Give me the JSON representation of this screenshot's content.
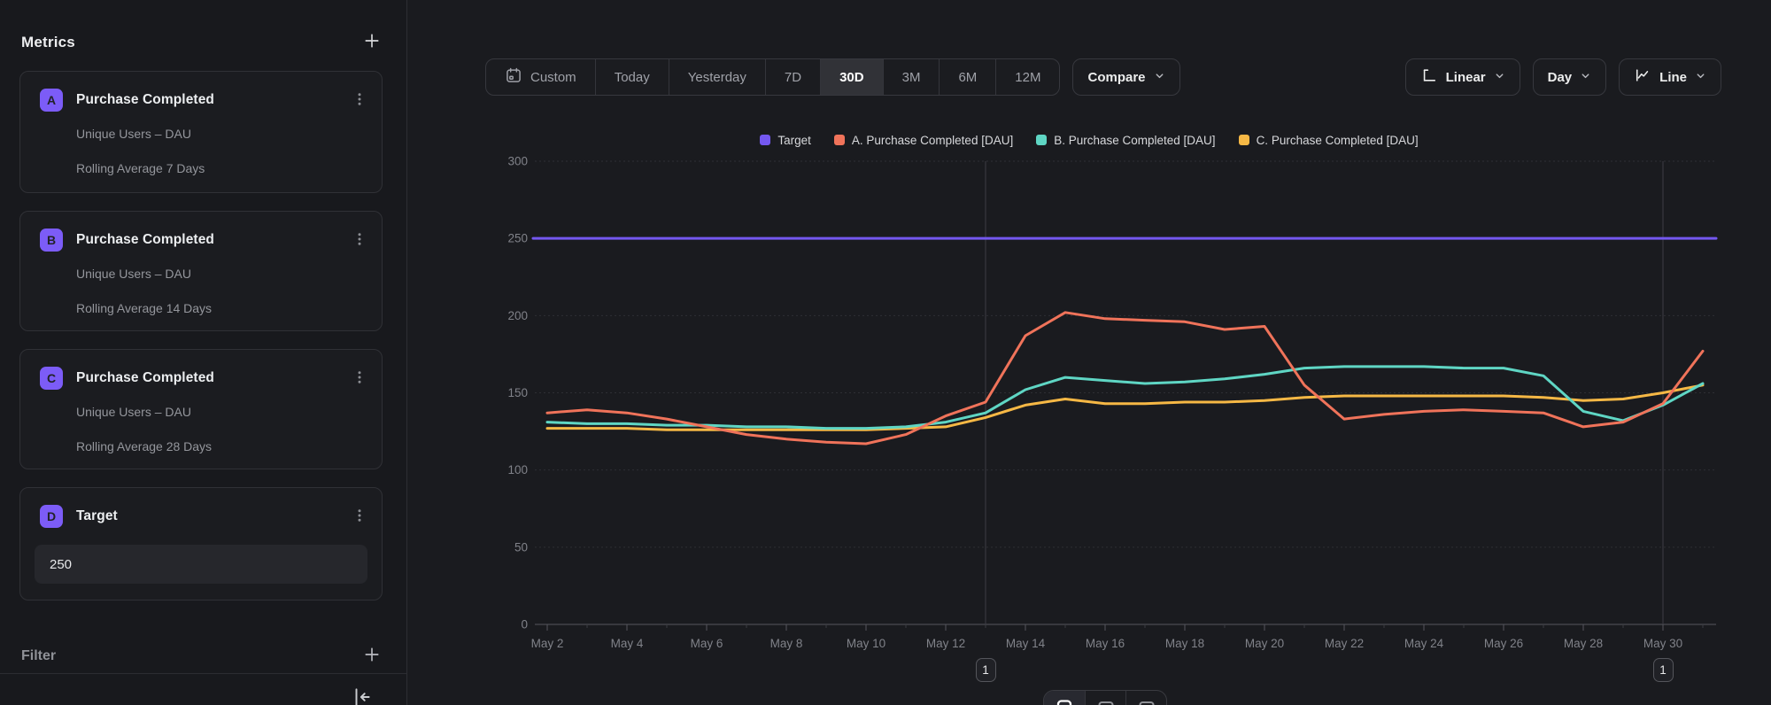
{
  "sidebar": {
    "title": "Metrics",
    "metrics": [
      {
        "badge": "A",
        "title": "Purchase Completed",
        "line1": "Unique Users – DAU",
        "line2": "Rolling Average 7 Days"
      },
      {
        "badge": "B",
        "title": "Purchase Completed",
        "line1": "Unique Users – DAU",
        "line2": "Rolling Average 14 Days"
      },
      {
        "badge": "C",
        "title": "Purchase Completed",
        "line1": "Unique Users – DAU",
        "line2": "Rolling Average 28 Days"
      },
      {
        "badge": "D",
        "title": "Target",
        "value": "250"
      }
    ],
    "filter_label": "Filter"
  },
  "toolbar": {
    "ranges": [
      "Custom",
      "Today",
      "Yesterday",
      "7D",
      "30D",
      "3M",
      "6M",
      "12M"
    ],
    "selected_range": "30D",
    "compare_label": "Compare",
    "scale_label": "Linear",
    "interval_label": "Day",
    "chart_type_label": "Line"
  },
  "legend": [
    {
      "label": "Target",
      "color": "#7458f0"
    },
    {
      "label": "A. Purchase Completed [DAU]",
      "color": "#f0735a"
    },
    {
      "label": "B. Purchase Completed [DAU]",
      "color": "#5fd6c4"
    },
    {
      "label": "C. Purchase Completed [DAU]",
      "color": "#f6b845"
    }
  ],
  "chart_data": {
    "type": "line",
    "x": [
      "May 2",
      "May 3",
      "May 4",
      "May 5",
      "May 6",
      "May 7",
      "May 8",
      "May 9",
      "May 10",
      "May 11",
      "May 12",
      "May 13",
      "May 14",
      "May 15",
      "May 16",
      "May 17",
      "May 18",
      "May 19",
      "May 20",
      "May 21",
      "May 22",
      "May 23",
      "May 24",
      "May 25",
      "May 26",
      "May 27",
      "May 28",
      "May 29",
      "May 30",
      "May 31"
    ],
    "xtick_every": 2,
    "ylim": [
      0,
      300
    ],
    "yticks": [
      0,
      50,
      100,
      150,
      200,
      250,
      300
    ],
    "grid": true,
    "legend_position": "top-center",
    "series": [
      {
        "name": "Target",
        "color": "#7458f0",
        "constant": 250
      },
      {
        "name": "A. Purchase Completed [DAU]",
        "color": "#f0735a",
        "values": [
          137,
          139,
          137,
          133,
          128,
          123,
          120,
          118,
          117,
          123,
          135,
          144,
          187,
          202,
          198,
          197,
          196,
          191,
          193,
          155,
          133,
          136,
          138,
          139,
          138,
          137,
          128,
          131,
          143,
          177
        ]
      },
      {
        "name": "B. Purchase Completed [DAU]",
        "color": "#5fd6c4",
        "values": [
          131,
          130,
          130,
          129,
          129,
          128,
          128,
          127,
          127,
          128,
          131,
          137,
          152,
          160,
          158,
          156,
          157,
          159,
          162,
          166,
          167,
          167,
          167,
          166,
          166,
          161,
          138,
          132,
          142,
          156
        ]
      },
      {
        "name": "C. Purchase Completed [DAU]",
        "color": "#f6b845",
        "values": [
          127,
          127,
          127,
          126,
          126,
          126,
          126,
          126,
          126,
          127,
          128,
          134,
          142,
          146,
          143,
          143,
          144,
          144,
          145,
          147,
          148,
          148,
          148,
          148,
          148,
          147,
          145,
          146,
          150,
          155
        ]
      }
    ],
    "annotations": [
      {
        "x": "May 13",
        "label": "1"
      },
      {
        "x": "May 30",
        "label": "1"
      }
    ]
  }
}
